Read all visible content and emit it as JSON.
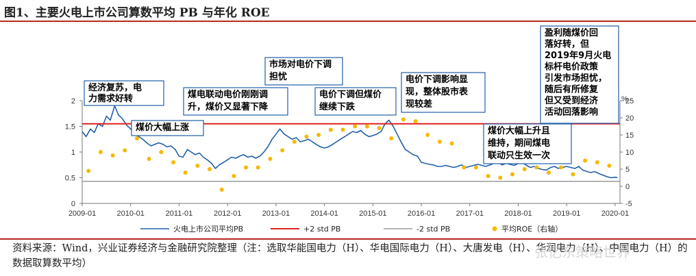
{
  "header": {
    "title": "图1、主要火电上市公司算数平均 PB 与年化 ROE"
  },
  "footer": {
    "source": "资料来源：Wind，兴业证券经济与金融研究院整理（注：选取华能国电力（H）、华电国际电力（H）、大唐发电（H）、华润电力（H）、中国电力（H）的数据取算数平均）",
    "watermark": "张忆东策略世界"
  },
  "chart_data": {
    "type": "line",
    "title": "主要火电上市公司算数平均 PB 与年化 ROE",
    "x_ticks": [
      "2009-01",
      "2010-01",
      "2011-01",
      "2012-01",
      "2013-01",
      "2014-01",
      "2015-01",
      "2016-01",
      "2017-01",
      "2018-01",
      "2019-01",
      "2020-01"
    ],
    "x_range": [
      2009.0,
      2020.1
    ],
    "y_left": {
      "ticks": [
        "0",
        "0.5",
        "1",
        "1.5",
        "2"
      ],
      "range": [
        0,
        2
      ]
    },
    "y_right": {
      "ticks": [
        "-5",
        "0",
        "5",
        "10",
        "15",
        "20",
        "25"
      ],
      "range": [
        -5,
        25
      ],
      "unit": "%"
    },
    "series": [
      {
        "name": "火电上市公司平均PB",
        "type": "line",
        "axis": "left",
        "color": "#1f5fa8",
        "points": [
          [
            2009.0,
            1.4
          ],
          [
            2009.08,
            1.3
          ],
          [
            2009.17,
            1.45
          ],
          [
            2009.25,
            1.38
          ],
          [
            2009.33,
            1.55
          ],
          [
            2009.42,
            1.5
          ],
          [
            2009.5,
            1.7
          ],
          [
            2009.58,
            1.62
          ],
          [
            2009.67,
            1.9
          ],
          [
            2009.75,
            1.72
          ],
          [
            2009.83,
            1.65
          ],
          [
            2009.92,
            1.52
          ],
          [
            2010.0,
            1.45
          ],
          [
            2010.08,
            1.38
          ],
          [
            2010.17,
            1.3
          ],
          [
            2010.25,
            1.25
          ],
          [
            2010.33,
            1.18
          ],
          [
            2010.42,
            1.12
          ],
          [
            2010.5,
            1.15
          ],
          [
            2010.58,
            1.18
          ],
          [
            2010.67,
            1.15
          ],
          [
            2010.75,
            1.1
          ],
          [
            2010.83,
            1.12
          ],
          [
            2010.92,
            1.05
          ],
          [
            2011.0,
            0.92
          ],
          [
            2011.08,
            0.9
          ],
          [
            2011.17,
            1.05
          ],
          [
            2011.25,
            1.0
          ],
          [
            2011.33,
            0.95
          ],
          [
            2011.42,
            0.98
          ],
          [
            2011.5,
            0.9
          ],
          [
            2011.58,
            0.85
          ],
          [
            2011.67,
            0.78
          ],
          [
            2011.75,
            0.68
          ],
          [
            2011.83,
            0.75
          ],
          [
            2011.92,
            0.8
          ],
          [
            2012.0,
            0.85
          ],
          [
            2012.08,
            0.9
          ],
          [
            2012.17,
            0.88
          ],
          [
            2012.25,
            0.92
          ],
          [
            2012.33,
            0.95
          ],
          [
            2012.42,
            0.9
          ],
          [
            2012.5,
            0.92
          ],
          [
            2012.58,
            0.88
          ],
          [
            2012.67,
            0.92
          ],
          [
            2012.75,
            1.0
          ],
          [
            2012.83,
            1.1
          ],
          [
            2012.92,
            1.25
          ],
          [
            2013.0,
            1.35
          ],
          [
            2013.08,
            1.45
          ],
          [
            2013.17,
            1.35
          ],
          [
            2013.25,
            1.3
          ],
          [
            2013.33,
            1.25
          ],
          [
            2013.42,
            1.28
          ],
          [
            2013.5,
            1.2
          ],
          [
            2013.58,
            1.22
          ],
          [
            2013.67,
            1.25
          ],
          [
            2013.75,
            1.2
          ],
          [
            2013.83,
            1.15
          ],
          [
            2013.92,
            1.1
          ],
          [
            2014.0,
            1.08
          ],
          [
            2014.08,
            1.1
          ],
          [
            2014.17,
            1.15
          ],
          [
            2014.25,
            1.2
          ],
          [
            2014.33,
            1.25
          ],
          [
            2014.42,
            1.3
          ],
          [
            2014.5,
            1.35
          ],
          [
            2014.58,
            1.4
          ],
          [
            2014.67,
            1.38
          ],
          [
            2014.75,
            1.42
          ],
          [
            2014.83,
            1.35
          ],
          [
            2014.92,
            1.3
          ],
          [
            2015.0,
            1.32
          ],
          [
            2015.08,
            1.35
          ],
          [
            2015.17,
            1.4
          ],
          [
            2015.25,
            1.55
          ],
          [
            2015.33,
            1.62
          ],
          [
            2015.42,
            1.5
          ],
          [
            2015.5,
            1.35
          ],
          [
            2015.58,
            1.2
          ],
          [
            2015.67,
            1.05
          ],
          [
            2015.75,
            1.0
          ],
          [
            2015.83,
            0.95
          ],
          [
            2015.92,
            0.92
          ],
          [
            2016.0,
            0.8
          ],
          [
            2016.08,
            0.78
          ],
          [
            2016.17,
            0.76
          ],
          [
            2016.25,
            0.75
          ],
          [
            2016.33,
            0.72
          ],
          [
            2016.42,
            0.72
          ],
          [
            2016.5,
            0.74
          ],
          [
            2016.58,
            0.72
          ],
          [
            2016.67,
            0.7
          ],
          [
            2016.75,
            0.72
          ],
          [
            2016.83,
            0.75
          ],
          [
            2016.92,
            0.7
          ],
          [
            2017.0,
            0.72
          ],
          [
            2017.08,
            0.74
          ],
          [
            2017.17,
            0.76
          ],
          [
            2017.25,
            0.74
          ],
          [
            2017.33,
            0.72
          ],
          [
            2017.42,
            0.75
          ],
          [
            2017.5,
            0.78
          ],
          [
            2017.58,
            0.8
          ],
          [
            2017.67,
            0.75
          ],
          [
            2017.75,
            0.78
          ],
          [
            2017.83,
            0.76
          ],
          [
            2017.92,
            0.74
          ],
          [
            2018.0,
            0.78
          ],
          [
            2018.08,
            0.8
          ],
          [
            2018.17,
            0.74
          ],
          [
            2018.25,
            0.7
          ],
          [
            2018.33,
            0.72
          ],
          [
            2018.42,
            0.68
          ],
          [
            2018.5,
            0.66
          ],
          [
            2018.58,
            0.65
          ],
          [
            2018.67,
            0.7
          ],
          [
            2018.75,
            0.72
          ],
          [
            2018.83,
            0.68
          ],
          [
            2018.92,
            0.7
          ],
          [
            2019.0,
            0.72
          ],
          [
            2019.08,
            0.7
          ],
          [
            2019.17,
            0.68
          ],
          [
            2019.25,
            0.72
          ],
          [
            2019.33,
            0.65
          ],
          [
            2019.42,
            0.62
          ],
          [
            2019.5,
            0.6
          ],
          [
            2019.58,
            0.62
          ],
          [
            2019.67,
            0.58
          ],
          [
            2019.75,
            0.55
          ],
          [
            2019.83,
            0.52
          ],
          [
            2019.92,
            0.5
          ],
          [
            2020.0,
            0.51
          ],
          [
            2020.05,
            0.5
          ]
        ]
      },
      {
        "name": "+2 std PB",
        "type": "hline",
        "axis": "left",
        "color": "#e02020",
        "value": 1.55
      },
      {
        "name": "-2 std PB",
        "type": "hline",
        "axis": "left",
        "color": "#9a9a9a",
        "value": 0.43
      },
      {
        "name": "平均ROE（右轴）",
        "type": "scatter",
        "axis": "right",
        "color": "#f5b800",
        "points": [
          [
            2009.13,
            4.5
          ],
          [
            2009.38,
            10.0
          ],
          [
            2009.63,
            9.0
          ],
          [
            2009.88,
            10.5
          ],
          [
            2010.13,
            14.0
          ],
          [
            2010.38,
            8.0
          ],
          [
            2010.63,
            10.0
          ],
          [
            2010.88,
            7.0
          ],
          [
            2011.13,
            4.0
          ],
          [
            2011.38,
            6.0
          ],
          [
            2011.63,
            5.0
          ],
          [
            2011.88,
            -1.0
          ],
          [
            2012.13,
            3.0
          ],
          [
            2012.38,
            5.5
          ],
          [
            2012.63,
            5.5
          ],
          [
            2012.88,
            8.0
          ],
          [
            2013.13,
            10.5
          ],
          [
            2013.38,
            13.0
          ],
          [
            2013.63,
            14.5
          ],
          [
            2013.88,
            15.0
          ],
          [
            2014.13,
            16.5
          ],
          [
            2014.38,
            16.5
          ],
          [
            2014.63,
            17.5
          ],
          [
            2014.88,
            17.5
          ],
          [
            2015.13,
            17.0
          ],
          [
            2015.38,
            14.0
          ],
          [
            2015.63,
            19.5
          ],
          [
            2015.88,
            19.0
          ],
          [
            2016.13,
            15.0
          ],
          [
            2016.38,
            13.0
          ],
          [
            2016.63,
            12.5
          ],
          [
            2016.88,
            5.5
          ],
          [
            2017.13,
            5.5
          ],
          [
            2017.38,
            3.0
          ],
          [
            2017.63,
            2.5
          ],
          [
            2017.88,
            3.5
          ],
          [
            2018.13,
            5.0
          ],
          [
            2018.38,
            5.5
          ],
          [
            2018.63,
            4.0
          ],
          [
            2018.88,
            5.5
          ],
          [
            2019.13,
            3.5
          ],
          [
            2019.38,
            7.5
          ],
          [
            2019.63,
            7.0
          ],
          [
            2019.88,
            6.0
          ]
        ]
      }
    ],
    "annotations": [
      {
        "lines": [
          "经济复苏，电",
          "力需求好转"
        ]
      },
      {
        "lines": [
          "煤价大幅上涨"
        ]
      },
      {
        "lines": [
          "煤电联动电价刚刚调",
          "升，煤价又显著下降"
        ]
      },
      {
        "lines": [
          "市场对电价下调",
          "担忧"
        ]
      },
      {
        "lines": [
          "电价下调但煤价",
          "继续下跌"
        ]
      },
      {
        "lines": [
          "电价下调影响显",
          "现，整体股市表",
          "现较差"
        ]
      },
      {
        "lines": [
          "煤价大幅上升且",
          "维持，期间煤电",
          "联动只生效一次"
        ]
      },
      {
        "lines": [
          "盈利随煤价回",
          "落好转，但",
          "2019年9月火电",
          "标杆电价政策",
          "引发市场担忧，",
          "随后有所修复",
          "但又受到经济",
          "活动回落影响"
        ]
      }
    ],
    "legend": [
      "火电上市公司平均PB",
      "+2 std PB",
      "-2 std PB",
      "平均ROE（右轴）"
    ],
    "legend_position": "bottom"
  }
}
